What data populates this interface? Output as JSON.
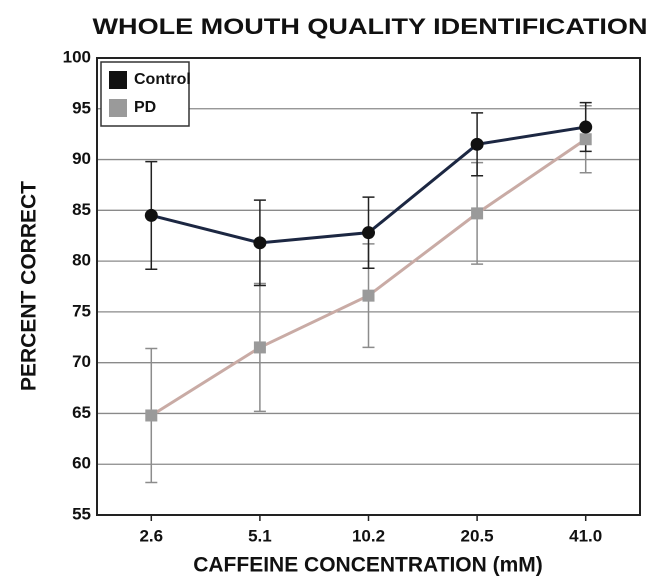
{
  "chart_data": {
    "type": "line",
    "title": "WHOLE MOUTH QUALITY IDENTIFICATION",
    "xlabel": "CAFFEINE CONCENTRATION (mM)",
    "ylabel": "PERCENT CORRECT",
    "categories": [
      "2.6",
      "5.1",
      "10.2",
      "20.5",
      "41.0"
    ],
    "series": [
      {
        "name": "Control",
        "color": "#1c2742",
        "marker_color": "#111111",
        "marker": "circle",
        "values": [
          84.5,
          81.8,
          82.8,
          91.5,
          93.2
        ],
        "errors": [
          5.3,
          4.2,
          3.5,
          3.1,
          2.4
        ]
      },
      {
        "name": "PD",
        "color": "#c9aba5",
        "marker_color": "#9a9a9a",
        "marker": "square",
        "values": [
          64.8,
          71.5,
          76.6,
          84.7,
          92.0
        ],
        "errors": [
          6.6,
          6.3,
          5.1,
          5.0,
          3.3
        ]
      }
    ],
    "ylim": [
      55,
      100
    ],
    "yticks": [
      55,
      60,
      65,
      70,
      75,
      80,
      85,
      90,
      95,
      100
    ],
    "grid": true,
    "legend": "upper left"
  }
}
